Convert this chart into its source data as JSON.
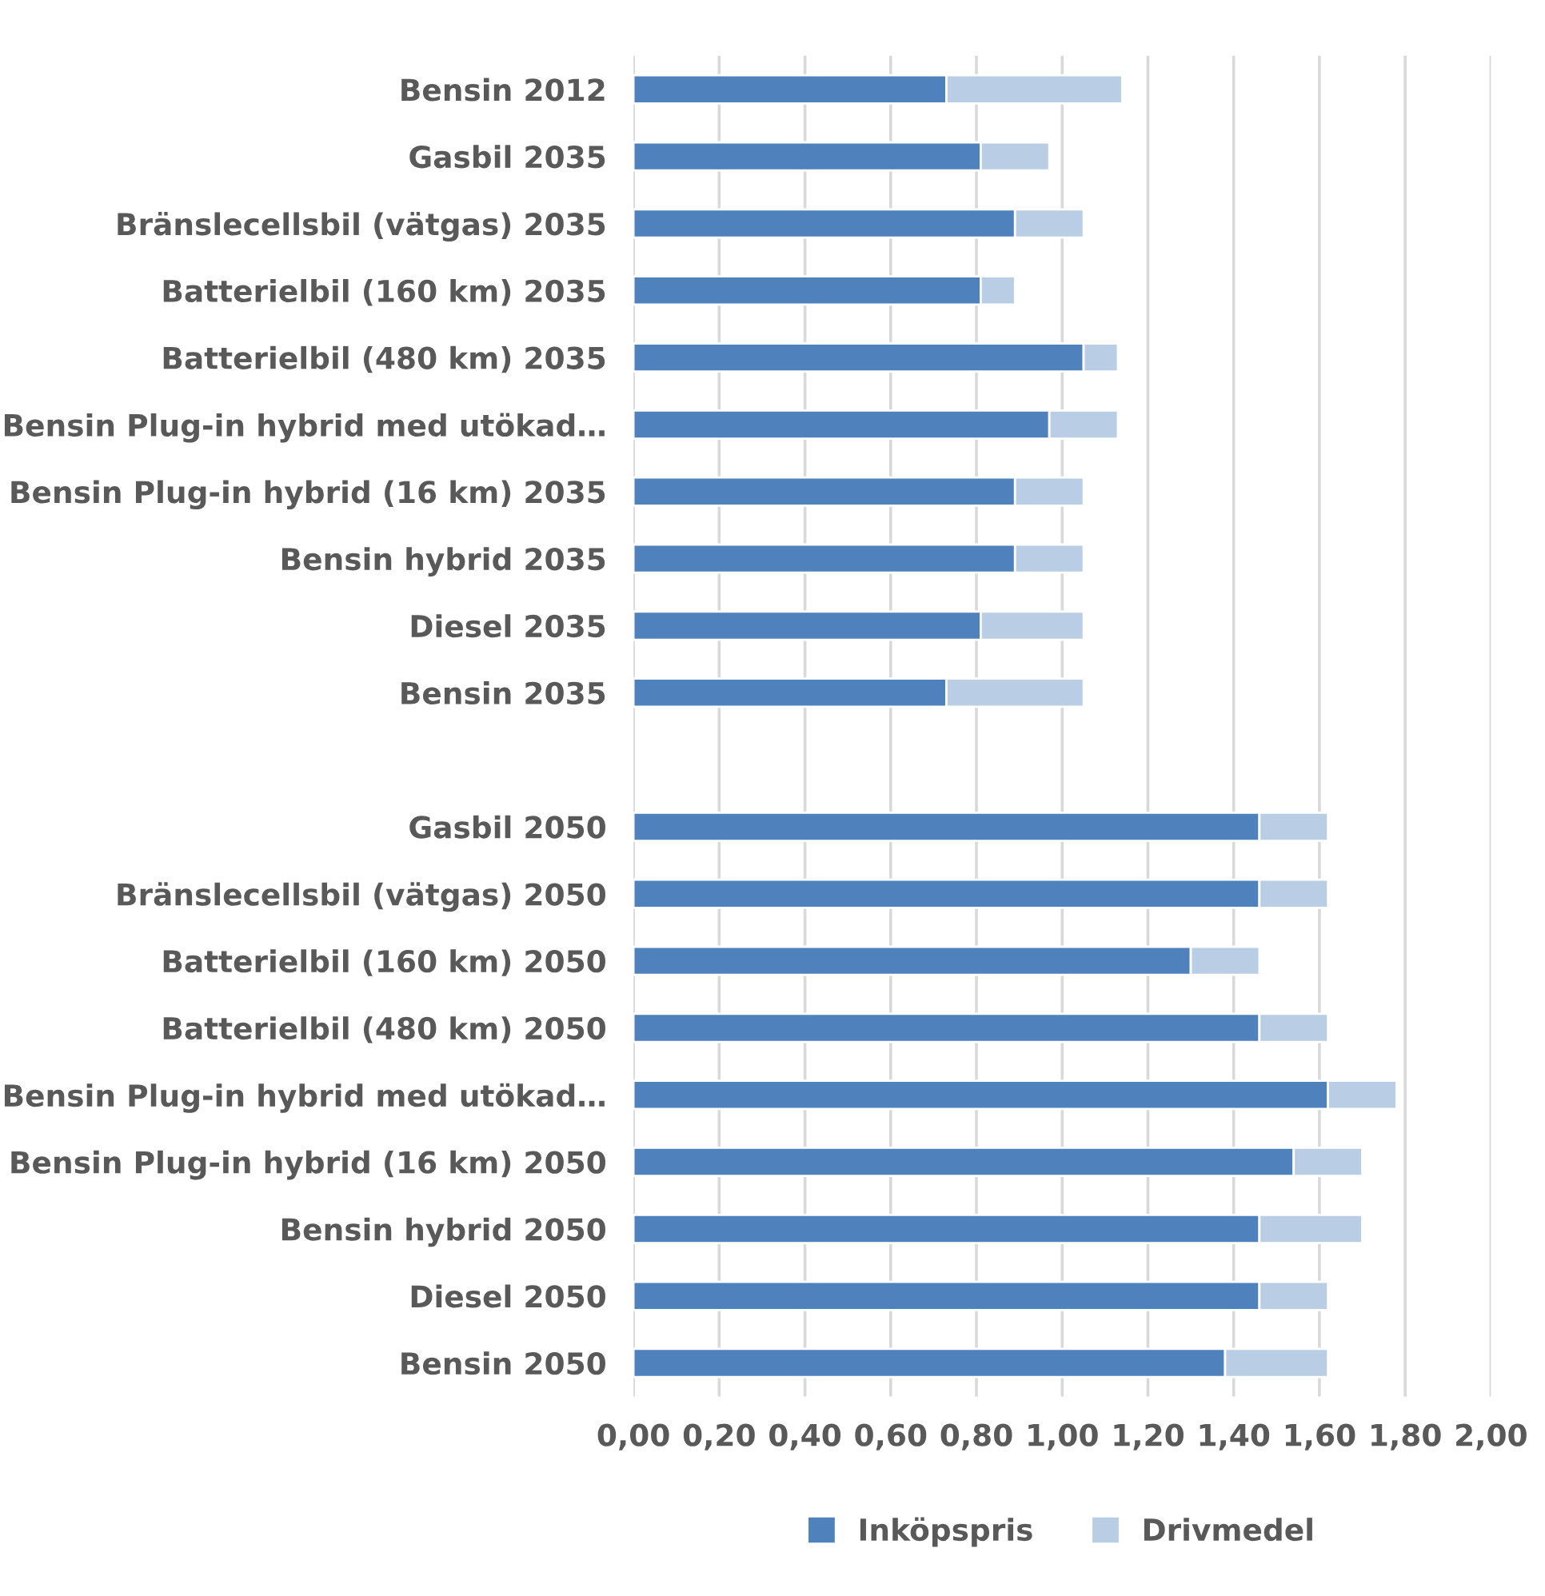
{
  "chart_data": {
    "type": "bar",
    "orientation": "horizontal",
    "stacked": true,
    "categories": [
      "Bensin 2012",
      "Gasbil 2035",
      "Bränslecellsbil (vätgas) 2035",
      "Batterielbil (160 km) 2035",
      "Batterielbil (480 km) 2035",
      "Bensin Plug-in hybrid med utökad…",
      "Bensin Plug-in hybrid (16 km) 2035",
      "Bensin hybrid 2035",
      "Diesel 2035",
      "Bensin 2035",
      null,
      "Gasbil 2050",
      "Bränslecellsbil (vätgas) 2050",
      "Batterielbil (160 km) 2050",
      "Batterielbil (480 km) 2050",
      "Bensin Plug-in hybrid med utökad…",
      "Bensin Plug-in hybrid (16 km) 2050",
      "Bensin hybrid 2050",
      "Diesel 2050",
      "Bensin 2050"
    ],
    "series": [
      {
        "name": "Inköpspris",
        "color": "#4f81bd",
        "values": [
          0.73,
          0.81,
          0.89,
          0.81,
          1.05,
          0.97,
          0.89,
          0.89,
          0.81,
          0.73,
          null,
          1.46,
          1.46,
          1.3,
          1.46,
          1.62,
          1.54,
          1.46,
          1.46,
          1.38
        ]
      },
      {
        "name": "Drivmedel",
        "color": "#b9cde5",
        "values": [
          0.41,
          0.16,
          0.16,
          0.08,
          0.08,
          0.16,
          0.16,
          0.16,
          0.24,
          0.32,
          null,
          0.16,
          0.16,
          0.16,
          0.16,
          0.16,
          0.16,
          0.24,
          0.16,
          0.24
        ]
      }
    ],
    "xlim": [
      0,
      2
    ],
    "xticks": [
      {
        "value": 0,
        "label": "0,00"
      },
      {
        "value": 0.2,
        "label": "0,20"
      },
      {
        "value": 0.4,
        "label": "0,40"
      },
      {
        "value": 0.6,
        "label": "0,60"
      },
      {
        "value": 0.8,
        "label": "0,80"
      },
      {
        "value": 1.0,
        "label": "1,00"
      },
      {
        "value": 1.2,
        "label": "1,20"
      },
      {
        "value": 1.4,
        "label": "1,40"
      },
      {
        "value": 1.6,
        "label": "1,60"
      },
      {
        "value": 1.8,
        "label": "1,80"
      },
      {
        "value": 2.0,
        "label": "2,00"
      }
    ],
    "grid": "x",
    "legend": "bottom"
  }
}
